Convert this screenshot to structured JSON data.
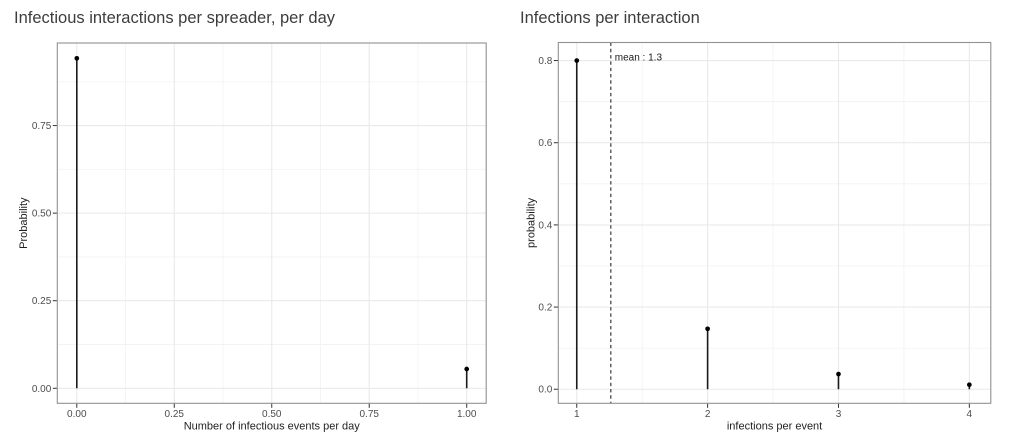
{
  "figure": {
    "background": "#ffffff"
  },
  "colors": {
    "title_text": "#3d3d3d",
    "axis_title_text": "#1f1f1f",
    "tick_label_text": "#4d4d4d",
    "tick_mark": "#333333",
    "panel_border": "#919191",
    "grid_major": "#e9e9e9",
    "grid_minor": "#f3f3f3",
    "stem": "#1a1a1a",
    "point": "#000000",
    "mean_line": "#555555",
    "annotation_text": "#1a1a1a"
  },
  "chart_data": [
    {
      "type": "stem",
      "title": "Infectious interactions per spreader, per day",
      "xlabel": "Number of infectious events per day",
      "ylabel": "Probability",
      "x": [
        0,
        1
      ],
      "y": [
        0.942,
        0.055
      ],
      "xticks": {
        "values": [
          0,
          0.25,
          0.5,
          0.75,
          1.0
        ],
        "labels": [
          "0.00",
          "0.25",
          "0.50",
          "0.75",
          "1.00"
        ]
      },
      "yticks": {
        "values": [
          0,
          0.25,
          0.5,
          0.75
        ],
        "labels": [
          "0.00",
          "0.25",
          "0.50",
          "0.75"
        ]
      },
      "x_minor": [
        0.125,
        0.375,
        0.625,
        0.875
      ],
      "y_minor": [
        0.125,
        0.375,
        0.625,
        0.875
      ],
      "xlim": [
        -0.05,
        1.05
      ],
      "ylim": [
        -0.0429,
        0.9857
      ],
      "grid": true,
      "legend": null,
      "mean_line": null
    },
    {
      "type": "stem",
      "title": "Infections per interaction",
      "xlabel": "infections per event",
      "ylabel": "probability",
      "x": [
        1,
        2,
        3,
        4
      ],
      "y": [
        0.8,
        0.147,
        0.037,
        0.011
      ],
      "xticks": {
        "values": [
          1,
          2,
          3,
          4
        ],
        "labels": [
          "1",
          "2",
          "3",
          "4"
        ]
      },
      "yticks": {
        "values": [
          0,
          0.2,
          0.4,
          0.6,
          0.8
        ],
        "labels": [
          "0.0",
          "0.2",
          "0.4",
          "0.6",
          "0.8"
        ]
      },
      "x_minor": [
        1.5,
        2.5,
        3.5
      ],
      "y_minor": [
        0.1,
        0.3,
        0.5,
        0.7
      ],
      "xlim": [
        0.859,
        4.164
      ],
      "ylim": [
        -0.0342,
        0.8439
      ],
      "grid": true,
      "legend": null,
      "mean_line": {
        "x": 1.26,
        "label": "mean : 1.3",
        "label_y": 0.8
      }
    }
  ]
}
